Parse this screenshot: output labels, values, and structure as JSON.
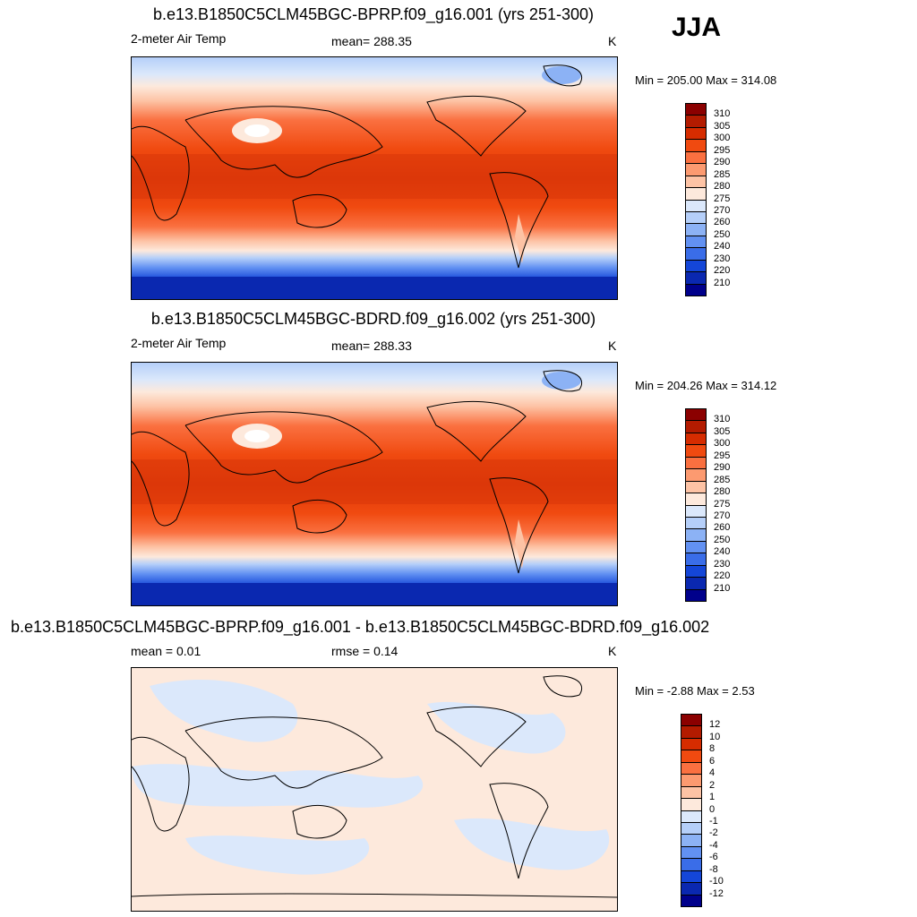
{
  "season": "JJA",
  "panels": [
    {
      "title": "b.e13.B1850C5CLM45BGC-BPRP.f09_g16.001 (yrs 251-300)",
      "left_label": "2-meter Air Temp",
      "center_label": "mean= 288.35",
      "units": "K",
      "minmax": "Min = 205.00 Max = 314.08"
    },
    {
      "title": "b.e13.B1850C5CLM45BGC-BDRD.f09_g16.002 (yrs 251-300)",
      "left_label": "2-meter Air Temp",
      "center_label": "mean= 288.33",
      "units": "K",
      "minmax": "Min = 204.26 Max = 314.12"
    },
    {
      "title": "b.e13.B1850C5CLM45BGC-BPRP.f09_g16.001 - b.e13.B1850C5CLM45BGC-BDRD.f09_g16.002",
      "left_label": "mean =   0.01",
      "center_label": "rmse =   0.14",
      "units": "K",
      "minmax": "Min =  -2.88 Max =   2.53"
    }
  ],
  "colorbars": {
    "abs": {
      "labels": [
        "310",
        "305",
        "300",
        "295",
        "290",
        "285",
        "280",
        "275",
        "270",
        "260",
        "250",
        "240",
        "230",
        "220",
        "210"
      ],
      "colors": [
        "#8b0000",
        "#b31b00",
        "#d62c00",
        "#f04a10",
        "#fa7040",
        "#fc9a70",
        "#fdc3a5",
        "#fde9dc",
        "#dbe8fb",
        "#b5cff9",
        "#8cb2f5",
        "#6291f2",
        "#3a6de8",
        "#1446d8",
        "#0a28b0",
        "#00008b"
      ]
    },
    "diff": {
      "labels": [
        "12",
        "10",
        "8",
        "6",
        "4",
        "2",
        "1",
        "0",
        "-1",
        "-2",
        "-4",
        "-6",
        "-8",
        "-10",
        "-12"
      ],
      "colors": [
        "#8b0000",
        "#b31b00",
        "#d62c00",
        "#f04a10",
        "#fa7040",
        "#fc9a70",
        "#fdc3a5",
        "#fde9dc",
        "#dbe8fb",
        "#b5cff9",
        "#8cb2f5",
        "#6291f2",
        "#3a6de8",
        "#1446d8",
        "#0a28b0",
        "#00008b"
      ]
    }
  },
  "diff_colors": {
    "positive": "#fde9dc",
    "negative": "#dbe8fb"
  }
}
